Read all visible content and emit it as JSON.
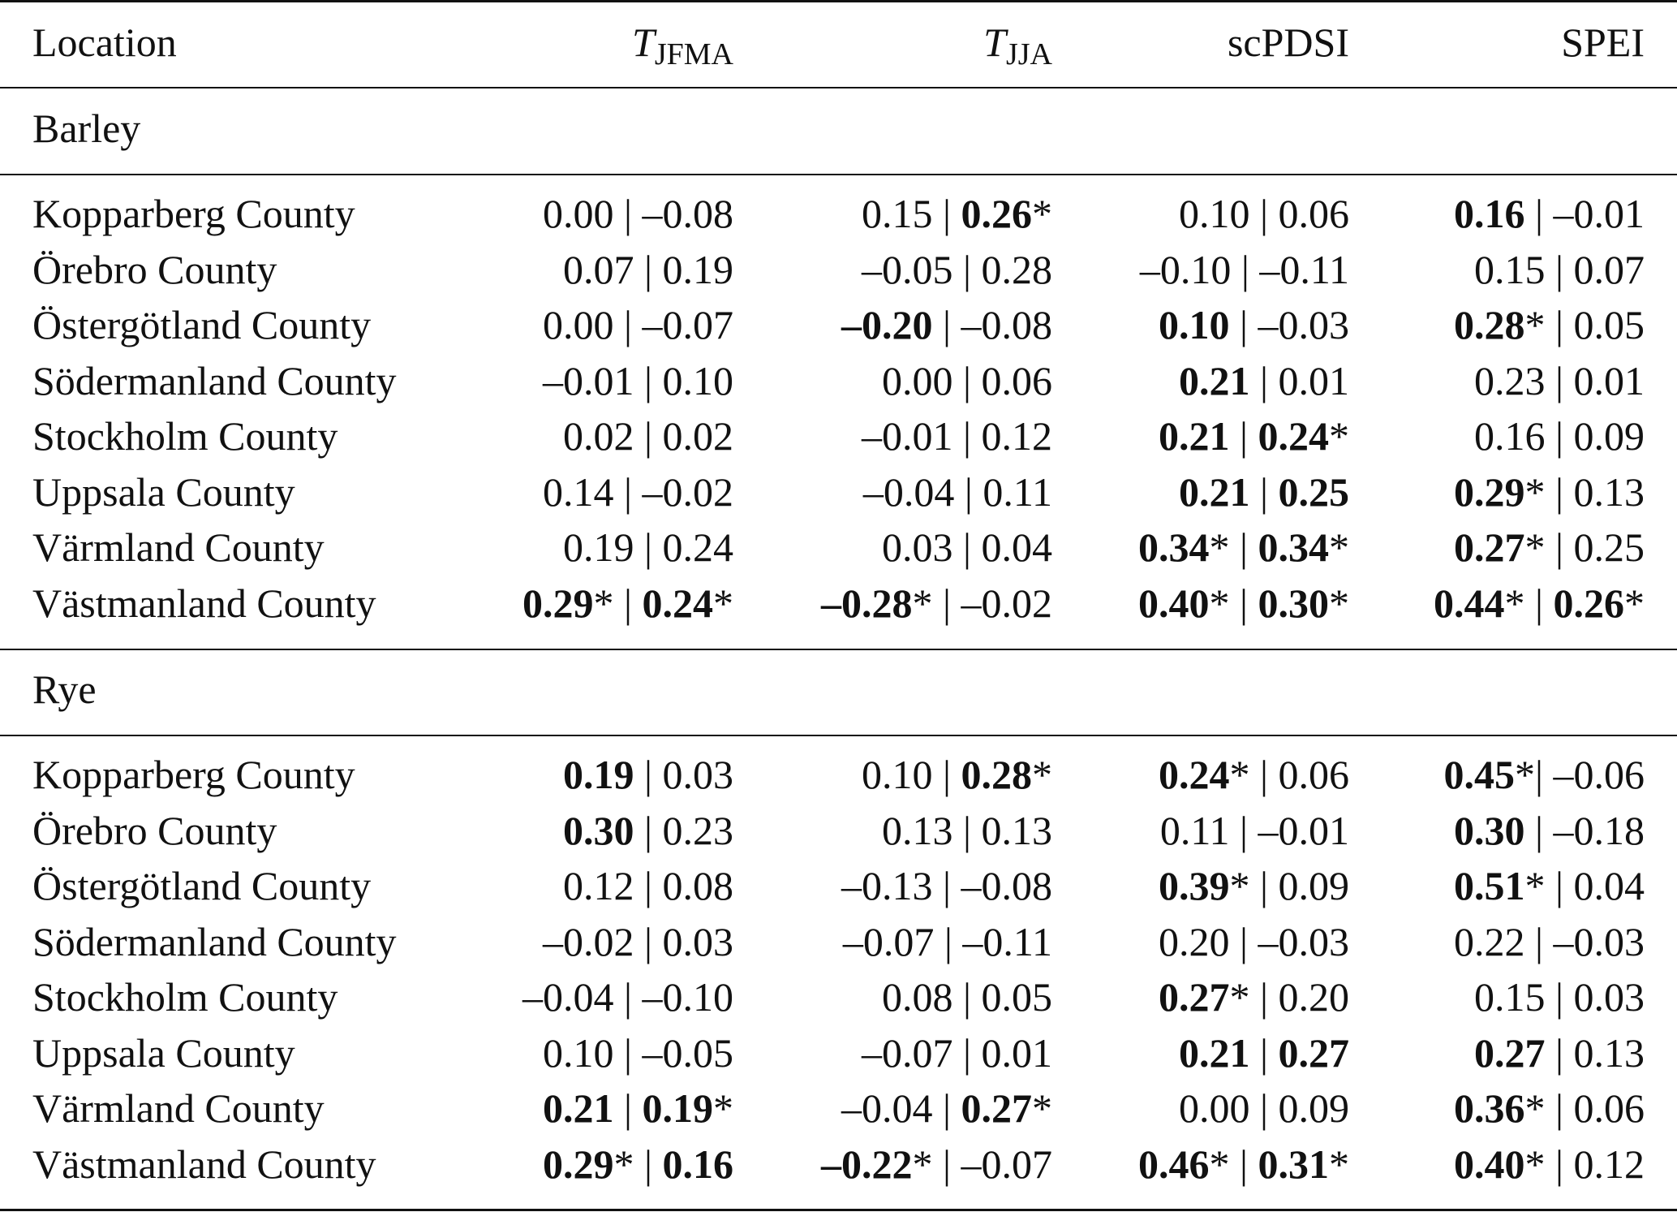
{
  "headers": {
    "location": "Location",
    "t_jfma_main": "T",
    "t_jfma_sub": "JFMA",
    "t_jja_main": "T",
    "t_jja_sub": "JJA",
    "scpdsi": "scPDSI",
    "spei": "SPEI"
  },
  "sections": [
    {
      "title": "Barley",
      "rows": [
        {
          "location": "Kopparberg County",
          "cells": [
            {
              "a": "0.00",
              "ab": false,
              "as": "",
              "sep": " | ",
              "b": "–0.08",
              "bb": false,
              "bs": ""
            },
            {
              "a": "0.15",
              "ab": false,
              "as": "",
              "sep": " | ",
              "b": "0.26",
              "bb": true,
              "bs": "*"
            },
            {
              "a": "0.10",
              "ab": false,
              "as": "",
              "sep": " | ",
              "b": "0.06",
              "bb": false,
              "bs": ""
            },
            {
              "a": "0.16",
              "ab": true,
              "as": "",
              "sep": " | ",
              "b": "–0.01",
              "bb": false,
              "bs": ""
            }
          ]
        },
        {
          "location": "Örebro County",
          "cells": [
            {
              "a": "0.07",
              "ab": false,
              "as": "",
              "sep": " | ",
              "b": "0.19",
              "bb": false,
              "bs": ""
            },
            {
              "a": "–0.05",
              "ab": false,
              "as": "",
              "sep": " | ",
              "b": "0.28",
              "bb": false,
              "bs": ""
            },
            {
              "a": "–0.10",
              "ab": false,
              "as": "",
              "sep": " | ",
              "b": "–0.11",
              "bb": false,
              "bs": ""
            },
            {
              "a": "0.15",
              "ab": false,
              "as": "",
              "sep": " | ",
              "b": "0.07",
              "bb": false,
              "bs": ""
            }
          ]
        },
        {
          "location": "Östergötland County",
          "cells": [
            {
              "a": "0.00",
              "ab": false,
              "as": "",
              "sep": " | ",
              "b": "–0.07",
              "bb": false,
              "bs": ""
            },
            {
              "a": "–0.20",
              "ab": true,
              "as": "",
              "sep": " | ",
              "b": "–0.08",
              "bb": false,
              "bs": ""
            },
            {
              "a": "0.10",
              "ab": true,
              "as": "",
              "sep": " | ",
              "b": "–0.03",
              "bb": false,
              "bs": ""
            },
            {
              "a": "0.28",
              "ab": true,
              "as": "*",
              "sep": " | ",
              "b": "0.05",
              "bb": false,
              "bs": ""
            }
          ]
        },
        {
          "location": "Södermanland County",
          "cells": [
            {
              "a": "–0.01",
              "ab": false,
              "as": "",
              "sep": " | ",
              "b": "0.10",
              "bb": false,
              "bs": ""
            },
            {
              "a": "0.00",
              "ab": false,
              "as": "",
              "sep": " | ",
              "b": "0.06",
              "bb": false,
              "bs": ""
            },
            {
              "a": "0.21",
              "ab": true,
              "as": "",
              "sep": " | ",
              "b": "0.01",
              "bb": false,
              "bs": ""
            },
            {
              "a": "0.23",
              "ab": false,
              "as": "",
              "sep": " | ",
              "b": "0.01",
              "bb": false,
              "bs": ""
            }
          ]
        },
        {
          "location": "Stockholm County",
          "cells": [
            {
              "a": "0.02",
              "ab": false,
              "as": "",
              "sep": " | ",
              "b": "0.02",
              "bb": false,
              "bs": ""
            },
            {
              "a": "–0.01",
              "ab": false,
              "as": "",
              "sep": " | ",
              "b": "0.12",
              "bb": false,
              "bs": ""
            },
            {
              "a": "0.21",
              "ab": true,
              "as": "",
              "sep": " | ",
              "b": "0.24",
              "bb": true,
              "bs": "*"
            },
            {
              "a": "0.16",
              "ab": false,
              "as": "",
              "sep": " | ",
              "b": "0.09",
              "bb": false,
              "bs": ""
            }
          ]
        },
        {
          "location": "Uppsala County",
          "cells": [
            {
              "a": "0.14",
              "ab": false,
              "as": "",
              "sep": " | ",
              "b": "–0.02",
              "bb": false,
              "bs": ""
            },
            {
              "a": "–0.04",
              "ab": false,
              "as": "",
              "sep": " | ",
              "b": "0.11",
              "bb": false,
              "bs": ""
            },
            {
              "a": "0.21",
              "ab": true,
              "as": "",
              "sep": " | ",
              "b": "0.25",
              "bb": true,
              "bs": ""
            },
            {
              "a": "0.29",
              "ab": true,
              "as": "*",
              "sep": " | ",
              "b": "0.13",
              "bb": false,
              "bs": ""
            }
          ]
        },
        {
          "location": "Värmland County",
          "cells": [
            {
              "a": "0.19",
              "ab": false,
              "as": "",
              "sep": " | ",
              "b": "0.24",
              "bb": false,
              "bs": ""
            },
            {
              "a": "0.03",
              "ab": false,
              "as": "",
              "sep": " | ",
              "b": "0.04",
              "bb": false,
              "bs": ""
            },
            {
              "a": "0.34",
              "ab": true,
              "as": "*",
              "sep": " | ",
              "b": "0.34",
              "bb": true,
              "bs": "*"
            },
            {
              "a": "0.27",
              "ab": true,
              "as": "*",
              "sep": " | ",
              "b": "0.25",
              "bb": false,
              "bs": ""
            }
          ]
        },
        {
          "location": "Västmanland County",
          "cells": [
            {
              "a": "0.29",
              "ab": true,
              "as": "*",
              "sep": " | ",
              "b": "0.24",
              "bb": true,
              "bs": "*"
            },
            {
              "a": "–0.28",
              "ab": true,
              "as": "*",
              "sep": " | ",
              "b": "–0.02",
              "bb": false,
              "bs": ""
            },
            {
              "a": "0.40",
              "ab": true,
              "as": "*",
              "sep": " | ",
              "b": "0.30",
              "bb": true,
              "bs": "*"
            },
            {
              "a": "0.44",
              "ab": true,
              "as": "*",
              "sep": " | ",
              "b": "0.26",
              "bb": true,
              "bs": "*"
            }
          ]
        }
      ]
    },
    {
      "title": "Rye",
      "rows": [
        {
          "location": "Kopparberg County",
          "cells": [
            {
              "a": "0.19",
              "ab": true,
              "as": "",
              "sep": " | ",
              "b": "0.03",
              "bb": false,
              "bs": ""
            },
            {
              "a": "0.10",
              "ab": false,
              "as": "",
              "sep": " | ",
              "b": "0.28",
              "bb": true,
              "bs": "*"
            },
            {
              "a": "0.24",
              "ab": true,
              "as": "*",
              "sep": " | ",
              "b": "0.06",
              "bb": false,
              "bs": ""
            },
            {
              "a": "0.45",
              "ab": true,
              "as": "*",
              "sep": "| ",
              "b": "–0.06",
              "bb": false,
              "bs": ""
            }
          ]
        },
        {
          "location": "Örebro County",
          "cells": [
            {
              "a": "0.30",
              "ab": true,
              "as": "",
              "sep": " | ",
              "b": "0.23",
              "bb": false,
              "bs": ""
            },
            {
              "a": "0.13",
              "ab": false,
              "as": "",
              "sep": " | ",
              "b": "0.13",
              "bb": false,
              "bs": ""
            },
            {
              "a": "0.11",
              "ab": false,
              "as": "",
              "sep": " | ",
              "b": "–0.01",
              "bb": false,
              "bs": ""
            },
            {
              "a": "0.30",
              "ab": true,
              "as": "",
              "sep": " | ",
              "b": "–0.18",
              "bb": false,
              "bs": ""
            }
          ]
        },
        {
          "location": "Östergötland County",
          "cells": [
            {
              "a": "0.12",
              "ab": false,
              "as": "",
              "sep": " | ",
              "b": "0.08",
              "bb": false,
              "bs": ""
            },
            {
              "a": "–0.13",
              "ab": false,
              "as": "",
              "sep": " | ",
              "b": "–0.08",
              "bb": false,
              "bs": ""
            },
            {
              "a": "0.39",
              "ab": true,
              "as": "*",
              "sep": " | ",
              "b": "0.09",
              "bb": false,
              "bs": ""
            },
            {
              "a": "0.51",
              "ab": true,
              "as": "*",
              "sep": " | ",
              "b": "0.04",
              "bb": false,
              "bs": ""
            }
          ]
        },
        {
          "location": "Södermanland County",
          "cells": [
            {
              "a": "–0.02",
              "ab": false,
              "as": "",
              "sep": " | ",
              "b": "0.03",
              "bb": false,
              "bs": ""
            },
            {
              "a": "–0.07",
              "ab": false,
              "as": "",
              "sep": " | ",
              "b": "–0.11",
              "bb": false,
              "bs": ""
            },
            {
              "a": "0.20",
              "ab": false,
              "as": "",
              "sep": " | ",
              "b": "–0.03",
              "bb": false,
              "bs": ""
            },
            {
              "a": "0.22",
              "ab": false,
              "as": "",
              "sep": " | ",
              "b": "–0.03",
              "bb": false,
              "bs": ""
            }
          ]
        },
        {
          "location": "Stockholm County",
          "cells": [
            {
              "a": "–0.04",
              "ab": false,
              "as": "",
              "sep": " | ",
              "b": "–0.10",
              "bb": false,
              "bs": ""
            },
            {
              "a": "0.08",
              "ab": false,
              "as": "",
              "sep": " | ",
              "b": "0.05",
              "bb": false,
              "bs": ""
            },
            {
              "a": "0.27",
              "ab": true,
              "as": "*",
              "sep": " | ",
              "b": "0.20",
              "bb": false,
              "bs": ""
            },
            {
              "a": "0.15",
              "ab": false,
              "as": "",
              "sep": " | ",
              "b": "0.03",
              "bb": false,
              "bs": ""
            }
          ]
        },
        {
          "location": "Uppsala County",
          "cells": [
            {
              "a": "0.10",
              "ab": false,
              "as": "",
              "sep": " | ",
              "b": "–0.05",
              "bb": false,
              "bs": ""
            },
            {
              "a": "–0.07",
              "ab": false,
              "as": "",
              "sep": " | ",
              "b": "0.01",
              "bb": false,
              "bs": ""
            },
            {
              "a": "0.21",
              "ab": true,
              "as": "",
              "sep": " | ",
              "b": "0.27",
              "bb": true,
              "bs": ""
            },
            {
              "a": "0.27",
              "ab": true,
              "as": "",
              "sep": " | ",
              "b": "0.13",
              "bb": false,
              "bs": ""
            }
          ]
        },
        {
          "location": "Värmland County",
          "cells": [
            {
              "a": "0.21",
              "ab": true,
              "as": "",
              "sep": " | ",
              "b": "0.19",
              "bb": true,
              "bs": "*"
            },
            {
              "a": "–0.04",
              "ab": false,
              "as": "",
              "sep": " | ",
              "b": "0.27",
              "bb": true,
              "bs": "*"
            },
            {
              "a": "0.00",
              "ab": false,
              "as": "",
              "sep": " | ",
              "b": "0.09",
              "bb": false,
              "bs": ""
            },
            {
              "a": "0.36",
              "ab": true,
              "as": "*",
              "sep": " | ",
              "b": "0.06",
              "bb": false,
              "bs": ""
            }
          ]
        },
        {
          "location": "Västmanland County",
          "cells": [
            {
              "a": "0.29",
              "ab": true,
              "as": "*",
              "sep": " | ",
              "b": "0.16",
              "bb": true,
              "bs": ""
            },
            {
              "a": "–0.22",
              "ab": true,
              "as": "*",
              "sep": " | ",
              "b": "–0.07",
              "bb": false,
              "bs": ""
            },
            {
              "a": "0.46",
              "ab": true,
              "as": "*",
              "sep": " | ",
              "b": "0.31",
              "bb": true,
              "bs": "*"
            },
            {
              "a": "0.40",
              "ab": true,
              "as": "*",
              "sep": " | ",
              "b": "0.12",
              "bb": false,
              "bs": ""
            }
          ]
        }
      ]
    }
  ]
}
